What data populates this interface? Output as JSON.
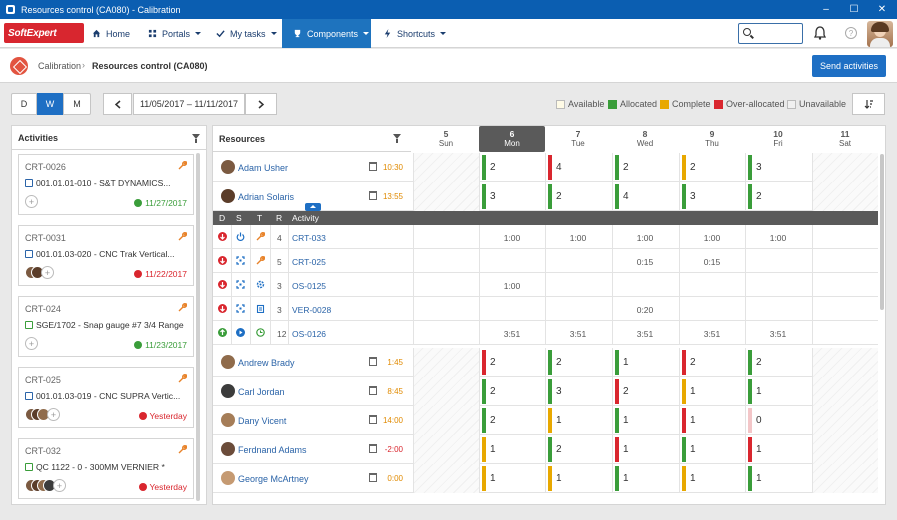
{
  "window": {
    "title": "Resources control (CA080) - Calibration",
    "controls": [
      "–",
      "☐",
      "✕"
    ]
  },
  "nav": {
    "logo": "SoftExpert",
    "items": [
      {
        "label": "Home",
        "icon": "home-icon"
      },
      {
        "label": "Portals",
        "icon": "grid-icon"
      },
      {
        "label": "My tasks",
        "icon": "check-icon"
      },
      {
        "label": "Components",
        "icon": "trophy-icon",
        "active": true
      },
      {
        "label": "Shortcuts",
        "icon": "bolt-icon"
      }
    ],
    "search_placeholder": ""
  },
  "breadcrumb": {
    "parent": "Calibration",
    "current": "Resources control (CA080)"
  },
  "send_button": "Send activities",
  "view_modes": [
    "D",
    "W",
    "M"
  ],
  "active_view": "W",
  "date_range": "11/05/2017 – 11/11/2017",
  "legend": [
    {
      "label": "Available",
      "color": "#fffbe6"
    },
    {
      "label": "Allocated",
      "color": "#3a9d3a"
    },
    {
      "label": "Complete",
      "color": "#e8a800"
    },
    {
      "label": "Over-allocated",
      "color": "#d9262e"
    },
    {
      "label": "Unavailable",
      "color": "#f0f0f0"
    }
  ],
  "activities": {
    "title": "Activities",
    "cards": [
      {
        "id": "CRT-0026",
        "name": "001.01.01-010 - S&T DYNAMICS...",
        "date": "11/27/2017",
        "status": "ok"
      },
      {
        "id": "CRT-0031",
        "name": "001.01.03-020 - CNC Trak Vertical...",
        "date": "11/22/2017",
        "status": "late"
      },
      {
        "id": "CRT-024",
        "name": "SGE/1702 - Snap gauge #7 3/4 Range",
        "date": "11/23/2017",
        "status": "ok"
      },
      {
        "id": "CRT-025",
        "name": "001.01.03-019 - CNC SUPRA Vertic...",
        "date": "Yesterday",
        "status": "late"
      },
      {
        "id": "CRT-032",
        "name": "QC 1122 - 0 - 300MM VERNIER *",
        "date": "Yesterday",
        "status": "late"
      }
    ]
  },
  "resources": {
    "title": "Resources",
    "days": [
      {
        "num": "5",
        "name": "Sun"
      },
      {
        "num": "6",
        "name": "Mon"
      },
      {
        "num": "7",
        "name": "Tue"
      },
      {
        "num": "8",
        "name": "Wed"
      },
      {
        "num": "9",
        "name": "Thu"
      },
      {
        "num": "10",
        "name": "Fri"
      },
      {
        "num": "11",
        "name": "Sat"
      }
    ],
    "today_index": 1,
    "top_rows": [
      {
        "name": "Adam Usher",
        "hours": "10:30",
        "hours_color": "#e08a00",
        "cells": [
          null,
          [
            "2",
            "#3a9d3a"
          ],
          [
            "4",
            "#d9262e"
          ],
          [
            "2",
            "#3a9d3a"
          ],
          [
            "2",
            "#e8a800"
          ],
          [
            "3",
            "#3a9d3a"
          ],
          null
        ]
      },
      {
        "name": "Adrian Solaris",
        "hours": "13:55",
        "hours_color": "#e08a00",
        "cells": [
          null,
          [
            "3",
            "#3a9d3a"
          ],
          [
            "2",
            "#3a9d3a"
          ],
          [
            "4",
            "#3a9d3a"
          ],
          [
            "3",
            "#3a9d3a"
          ],
          [
            "2",
            "#3a9d3a"
          ],
          null
        ]
      }
    ],
    "sub_header": {
      "d": "D",
      "s": "S",
      "t": "T",
      "r": "R",
      "activity": "Activity"
    },
    "activity_rows": [
      {
        "r": "4",
        "name": "CRT-033",
        "icons": [
          "down-red",
          "power-blue",
          "wrench-orange"
        ],
        "times": [
          null,
          "1:00",
          "1:00",
          "1:00",
          "1:00",
          "1:00",
          null
        ]
      },
      {
        "r": "5",
        "name": "CRT-025",
        "icons": [
          "down-red",
          "expand-blue",
          "wrench-orange"
        ],
        "times": [
          null,
          "",
          "",
          "0:15",
          "0:15",
          "",
          null
        ]
      },
      {
        "r": "3",
        "name": "OS-0125",
        "icons": [
          "down-red",
          "expand-blue",
          "gear-blue"
        ],
        "times": [
          null,
          "1:00",
          "",
          "",
          "",
          "",
          null
        ]
      },
      {
        "r": "3",
        "name": "VER-0028",
        "icons": [
          "down-red",
          "expand-blue",
          "clipboard-blue"
        ],
        "times": [
          null,
          "",
          "",
          "0:20",
          "",
          "",
          null
        ]
      },
      {
        "r": "12",
        "name": "OS-0126",
        "icons": [
          "up-green",
          "play-blue",
          "clock-green"
        ],
        "times": [
          null,
          "3:51",
          "3:51",
          "3:51",
          "3:51",
          "3:51",
          null
        ]
      }
    ],
    "bottom_rows": [
      {
        "name": "Andrew Brady",
        "hours": "1:45",
        "hours_color": "#e08a00",
        "cells": [
          null,
          [
            "2",
            "#d9262e"
          ],
          [
            "2",
            "#3a9d3a"
          ],
          [
            "1",
            "#3a9d3a"
          ],
          [
            "2",
            "#d9262e"
          ],
          [
            "2",
            "#3a9d3a"
          ],
          null
        ]
      },
      {
        "name": "Carl Jordan",
        "hours": "8:45",
        "hours_color": "#e08a00",
        "cells": [
          null,
          [
            "2",
            "#3a9d3a"
          ],
          [
            "3",
            "#3a9d3a"
          ],
          [
            "2",
            "#d9262e"
          ],
          [
            "1",
            "#e8a800"
          ],
          [
            "1",
            "#3a9d3a"
          ],
          null
        ]
      },
      {
        "name": "Dany Vicent",
        "hours": "14:00",
        "hours_color": "#e08a00",
        "cells": [
          null,
          [
            "2",
            "#3a9d3a"
          ],
          [
            "1",
            "#e8a800"
          ],
          [
            "1",
            "#3a9d3a"
          ],
          [
            "1",
            "#d9262e"
          ],
          [
            "0",
            "#f3c6c8"
          ],
          null
        ]
      },
      {
        "name": "Ferdnand Adams",
        "hours": "-2:00",
        "hours_color": "#d9262e",
        "cells": [
          null,
          [
            "1",
            "#e8a800"
          ],
          [
            "2",
            "#3a9d3a"
          ],
          [
            "1",
            "#d9262e"
          ],
          [
            "1",
            "#3a9d3a"
          ],
          [
            "1",
            "#d9262e"
          ],
          null
        ]
      },
      {
        "name": "George McArtney",
        "hours": "0:00",
        "hours_color": "#e08a00",
        "cells": [
          null,
          [
            "1",
            "#e8a800"
          ],
          [
            "1",
            "#e8a800"
          ],
          [
            "1",
            "#3a9d3a"
          ],
          [
            "1",
            "#e8a800"
          ],
          [
            "1",
            "#3a9d3a"
          ],
          null
        ]
      }
    ]
  }
}
